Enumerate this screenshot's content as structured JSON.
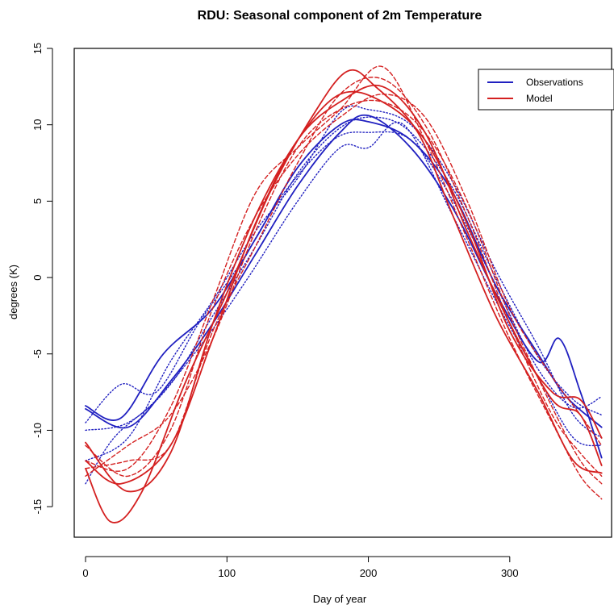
{
  "chart_data": {
    "type": "line",
    "title": "RDU: Seasonal component of 2m Temperature",
    "xlabel": "Day of year",
    "ylabel": "degrees (K)",
    "xlim": [
      -8,
      372
    ],
    "ylim": [
      -17.0,
      15.0
    ],
    "xticks": [
      0,
      100,
      200,
      300
    ],
    "yticks": [
      -15,
      -10,
      -5,
      0,
      5,
      10,
      15
    ],
    "grid": false,
    "legend_position": "top-right",
    "legend": [
      {
        "label": "Observations",
        "color": "#2020c0"
      },
      {
        "label": "Model",
        "color": "#d42020"
      }
    ],
    "series": [
      {
        "group": "Observations",
        "color": "#2020c0",
        "style": "solid",
        "x": [
          0,
          30,
          60,
          90,
          120,
          150,
          180,
          200,
          230,
          260,
          290,
          320,
          335,
          350,
          365
        ],
        "y": [
          -8.6,
          -9.8,
          -6.8,
          -3.0,
          1.5,
          6.0,
          9.5,
          10.6,
          8.5,
          4.5,
          -1.0,
          -5.5,
          -4.0,
          -7.5,
          -11.8
        ]
      },
      {
        "group": "Observations",
        "color": "#2020c0",
        "style": "solid",
        "x": [
          0,
          25,
          55,
          90,
          120,
          150,
          180,
          200,
          230,
          260,
          290,
          320,
          340,
          365
        ],
        "y": [
          -8.4,
          -9.2,
          -5.0,
          -2.0,
          2.5,
          7.2,
          10.0,
          10.2,
          9.0,
          5.5,
          -0.5,
          -5.0,
          -7.8,
          -9.8
        ]
      },
      {
        "group": "Observations",
        "color": "#2020c0",
        "style": "dotted",
        "x": [
          0,
          25,
          50,
          80,
          110,
          140,
          175,
          200,
          230,
          260,
          290,
          320,
          345,
          365
        ],
        "y": [
          -9.5,
          -7.0,
          -7.5,
          -3.0,
          1.0,
          5.5,
          9.0,
          9.5,
          9.0,
          5.0,
          -0.5,
          -6.0,
          -8.5,
          -7.8
        ]
      },
      {
        "group": "Observations",
        "color": "#2020c0",
        "style": "dotted",
        "x": [
          0,
          30,
          60,
          90,
          120,
          150,
          180,
          200,
          230,
          260,
          290,
          320,
          345,
          365
        ],
        "y": [
          -12.0,
          -10.5,
          -5.5,
          -1.5,
          3.0,
          6.5,
          10.8,
          11.0,
          10.0,
          6.2,
          0.5,
          -4.5,
          -9.0,
          -10.5
        ]
      },
      {
        "group": "Observations",
        "color": "#2020c0",
        "style": "dotted",
        "x": [
          0,
          20,
          50,
          85,
          115,
          150,
          180,
          200,
          225,
          260,
          290,
          320,
          345,
          365
        ],
        "y": [
          -13.5,
          -10.5,
          -8.0,
          -4.0,
          0.0,
          5.0,
          8.5,
          8.5,
          10.0,
          4.0,
          -1.5,
          -6.5,
          -10.5,
          -11.0
        ]
      },
      {
        "group": "Observations",
        "color": "#2020c0",
        "style": "dotted",
        "x": [
          0,
          30,
          60,
          90,
          120,
          150,
          180,
          205,
          230,
          260,
          290,
          320,
          345,
          365
        ],
        "y": [
          -10.0,
          -9.5,
          -7.0,
          -2.5,
          2.0,
          6.8,
          9.8,
          10.5,
          9.5,
          5.8,
          0.0,
          -5.2,
          -8.0,
          -9.0
        ]
      },
      {
        "group": "Model",
        "color": "#d42020",
        "style": "solid",
        "x": [
          0,
          18,
          40,
          70,
          100,
          130,
          160,
          185,
          205,
          235,
          260,
          290,
          320,
          345,
          365
        ],
        "y": [
          -12.5,
          -16.0,
          -14.0,
          -7.0,
          -1.0,
          5.5,
          10.5,
          13.5,
          12.5,
          9.5,
          4.0,
          -2.5,
          -7.5,
          -12.0,
          -12.8
        ]
      },
      {
        "group": "Model",
        "color": "#d42020",
        "style": "solid",
        "x": [
          0,
          25,
          60,
          90,
          120,
          150,
          180,
          210,
          240,
          270,
          300,
          330,
          350,
          365
        ],
        "y": [
          -12.0,
          -13.5,
          -11.0,
          -4.0,
          3.5,
          9.0,
          11.5,
          12.5,
          9.5,
          3.0,
          -3.0,
          -8.0,
          -9.0,
          -12.3
        ]
      },
      {
        "group": "Model",
        "color": "#d42020",
        "style": "solid",
        "x": [
          0,
          30,
          60,
          90,
          120,
          150,
          180,
          210,
          240,
          270,
          300,
          330,
          350,
          365
        ],
        "y": [
          -10.8,
          -14.0,
          -11.5,
          -3.0,
          4.0,
          9.0,
          12.0,
          11.5,
          9.0,
          3.5,
          -3.5,
          -7.5,
          -8.0,
          -10.5
        ]
      },
      {
        "group": "Model",
        "color": "#d42020",
        "style": "dashed",
        "x": [
          0,
          30,
          60,
          90,
          120,
          150,
          180,
          210,
          240,
          270,
          300,
          330,
          350,
          365
        ],
        "y": [
          -12.0,
          -12.5,
          -8.5,
          -1.5,
          5.5,
          8.5,
          11.0,
          13.8,
          9.0,
          2.5,
          -4.0,
          -9.5,
          -13.0,
          -14.5
        ]
      },
      {
        "group": "Model",
        "color": "#d42020",
        "style": "dashed",
        "x": [
          0,
          30,
          60,
          90,
          120,
          150,
          180,
          210,
          240,
          270,
          300,
          330,
          350,
          365
        ],
        "y": [
          -11.0,
          -13.0,
          -10.0,
          -2.0,
          4.0,
          8.0,
          10.5,
          12.0,
          10.5,
          5.0,
          -2.0,
          -6.5,
          -9.0,
          -11.0
        ]
      },
      {
        "group": "Model",
        "color": "#d42020",
        "style": "dashed",
        "x": [
          0,
          30,
          60,
          90,
          120,
          150,
          180,
          210,
          240,
          270,
          300,
          330,
          350,
          365
        ],
        "y": [
          -12.5,
          -12.0,
          -11.0,
          -3.5,
          2.0,
          7.5,
          12.0,
          13.0,
          10.0,
          4.0,
          -3.0,
          -9.0,
          -11.5,
          -13.0
        ]
      },
      {
        "group": "Model",
        "color": "#d42020",
        "style": "dashed",
        "x": [
          0,
          30,
          60,
          90,
          120,
          150,
          180,
          210,
          240,
          270,
          300,
          330,
          350,
          365
        ],
        "y": [
          -13.0,
          -11.0,
          -9.0,
          -4.0,
          3.0,
          8.5,
          11.0,
          11.5,
          9.5,
          4.5,
          -2.5,
          -8.5,
          -12.0,
          -13.5
        ]
      }
    ]
  }
}
